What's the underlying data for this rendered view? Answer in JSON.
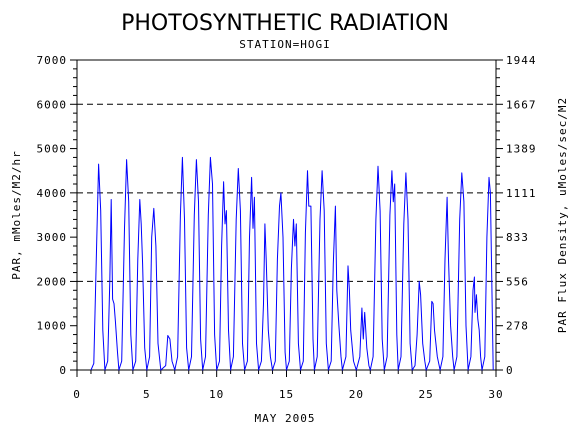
{
  "chart_data": {
    "type": "line",
    "title": "PHOTOSYNTHETIC RADIATION",
    "subtitle": "STATION=HOGI",
    "xlabel": "MAY 2005",
    "ylabel": "PAR, mMoles/M2/hr",
    "ylabel_right": "PAR Flux Density, uMoles/sec/M2",
    "xlim": [
      0,
      30
    ],
    "ylim": [
      0,
      7000
    ],
    "x_ticks": [
      "0",
      "5",
      "10",
      "15",
      "20",
      "25",
      "30"
    ],
    "y_ticks": [
      "0",
      "1000",
      "2000",
      "3000",
      "4000",
      "5000",
      "6000",
      "7000"
    ],
    "y2_ticks": [
      "0",
      "278",
      "556",
      "833",
      "1111",
      "1389",
      "1667",
      "1944"
    ],
    "reference_lines": [
      2000,
      4000,
      6000
    ],
    "line_color": "#0000ff",
    "series": [
      {
        "values": [
          [
            1.0,
            0
          ],
          [
            1.2,
            150
          ],
          [
            1.4,
            2800
          ],
          [
            1.55,
            4650
          ],
          [
            1.7,
            3600
          ],
          [
            1.85,
            900
          ],
          [
            2.0,
            0
          ],
          [
            2.2,
            200
          ],
          [
            2.35,
            2000
          ],
          [
            2.45,
            3850
          ],
          [
            2.55,
            1600
          ],
          [
            2.65,
            1500
          ],
          [
            2.75,
            1100
          ],
          [
            2.9,
            400
          ],
          [
            3.0,
            0
          ],
          [
            3.2,
            200
          ],
          [
            3.4,
            3200
          ],
          [
            3.55,
            4750
          ],
          [
            3.7,
            3800
          ],
          [
            3.85,
            800
          ],
          [
            4.0,
            0
          ],
          [
            4.2,
            200
          ],
          [
            4.35,
            2500
          ],
          [
            4.5,
            3850
          ],
          [
            4.6,
            3300
          ],
          [
            4.7,
            2400
          ],
          [
            4.85,
            500
          ],
          [
            5.0,
            0
          ],
          [
            5.2,
            300
          ],
          [
            5.35,
            3000
          ],
          [
            5.5,
            3650
          ],
          [
            5.65,
            2800
          ],
          [
            5.8,
            600
          ],
          [
            6.0,
            0
          ],
          [
            6.35,
            100
          ],
          [
            6.5,
            780
          ],
          [
            6.65,
            700
          ],
          [
            6.8,
            200
          ],
          [
            7.0,
            0
          ],
          [
            7.2,
            300
          ],
          [
            7.4,
            3500
          ],
          [
            7.55,
            4800
          ],
          [
            7.7,
            3400
          ],
          [
            7.85,
            500
          ],
          [
            8.0,
            0
          ],
          [
            8.2,
            300
          ],
          [
            8.4,
            3500
          ],
          [
            8.55,
            4750
          ],
          [
            8.7,
            3800
          ],
          [
            8.85,
            700
          ],
          [
            9.0,
            0
          ],
          [
            9.2,
            300
          ],
          [
            9.4,
            3500
          ],
          [
            9.55,
            4800
          ],
          [
            9.7,
            4200
          ],
          [
            9.85,
            800
          ],
          [
            10.0,
            0
          ],
          [
            10.2,
            200
          ],
          [
            10.35,
            2800
          ],
          [
            10.5,
            4250
          ],
          [
            10.6,
            3300
          ],
          [
            10.7,
            3600
          ],
          [
            10.85,
            900
          ],
          [
            11.0,
            0
          ],
          [
            11.2,
            300
          ],
          [
            11.4,
            3400
          ],
          [
            11.55,
            4550
          ],
          [
            11.7,
            3600
          ],
          [
            11.85,
            600
          ],
          [
            12.0,
            0
          ],
          [
            12.2,
            200
          ],
          [
            12.35,
            3000
          ],
          [
            12.5,
            4350
          ],
          [
            12.6,
            3200
          ],
          [
            12.7,
            3900
          ],
          [
            12.85,
            600
          ],
          [
            13.0,
            0
          ],
          [
            13.2,
            200
          ],
          [
            13.35,
            1500
          ],
          [
            13.45,
            3300
          ],
          [
            13.55,
            2500
          ],
          [
            13.7,
            900
          ],
          [
            13.85,
            300
          ],
          [
            14.0,
            0
          ],
          [
            14.2,
            200
          ],
          [
            14.35,
            2500
          ],
          [
            14.5,
            3700
          ],
          [
            14.6,
            4000
          ],
          [
            14.75,
            3000
          ],
          [
            14.9,
            400
          ],
          [
            15.0,
            0
          ],
          [
            15.2,
            200
          ],
          [
            15.35,
            2300
          ],
          [
            15.5,
            3400
          ],
          [
            15.6,
            2800
          ],
          [
            15.7,
            3300
          ],
          [
            15.85,
            600
          ],
          [
            16.0,
            0
          ],
          [
            16.2,
            200
          ],
          [
            16.35,
            3100
          ],
          [
            16.5,
            4500
          ],
          [
            16.6,
            3700
          ],
          [
            16.75,
            3700
          ],
          [
            16.9,
            700
          ],
          [
            17.0,
            0
          ],
          [
            17.2,
            300
          ],
          [
            17.4,
            3400
          ],
          [
            17.55,
            4500
          ],
          [
            17.7,
            3600
          ],
          [
            17.85,
            600
          ],
          [
            18.0,
            0
          ],
          [
            18.2,
            200
          ],
          [
            18.35,
            2400
          ],
          [
            18.5,
            3700
          ],
          [
            18.6,
            1800
          ],
          [
            18.75,
            1000
          ],
          [
            18.9,
            300
          ],
          [
            19.0,
            0
          ],
          [
            19.25,
            300
          ],
          [
            19.4,
            2350
          ],
          [
            19.5,
            1800
          ],
          [
            19.6,
            900
          ],
          [
            19.8,
            200
          ],
          [
            20.0,
            0
          ],
          [
            20.25,
            300
          ],
          [
            20.4,
            1400
          ],
          [
            20.5,
            700
          ],
          [
            20.6,
            1300
          ],
          [
            20.75,
            500
          ],
          [
            20.9,
            100
          ],
          [
            21.0,
            0
          ],
          [
            21.2,
            300
          ],
          [
            21.4,
            3400
          ],
          [
            21.55,
            4600
          ],
          [
            21.7,
            3600
          ],
          [
            21.85,
            700
          ],
          [
            22.0,
            0
          ],
          [
            22.2,
            300
          ],
          [
            22.4,
            3500
          ],
          [
            22.55,
            4500
          ],
          [
            22.65,
            3800
          ],
          [
            22.75,
            4200
          ],
          [
            22.9,
            800
          ],
          [
            23.0,
            0
          ],
          [
            23.2,
            300
          ],
          [
            23.4,
            3300
          ],
          [
            23.55,
            4450
          ],
          [
            23.7,
            3400
          ],
          [
            23.85,
            600
          ],
          [
            24.0,
            0
          ],
          [
            24.2,
            100
          ],
          [
            24.35,
            800
          ],
          [
            24.5,
            2000
          ],
          [
            24.6,
            1700
          ],
          [
            24.75,
            600
          ],
          [
            24.9,
            200
          ],
          [
            25.0,
            0
          ],
          [
            25.25,
            200
          ],
          [
            25.4,
            1550
          ],
          [
            25.5,
            1500
          ],
          [
            25.6,
            900
          ],
          [
            25.8,
            300
          ],
          [
            26.0,
            0
          ],
          [
            26.2,
            300
          ],
          [
            26.35,
            2500
          ],
          [
            26.5,
            3900
          ],
          [
            26.6,
            2500
          ],
          [
            26.75,
            1000
          ],
          [
            26.9,
            300
          ],
          [
            27.0,
            0
          ],
          [
            27.2,
            300
          ],
          [
            27.4,
            3400
          ],
          [
            27.55,
            4450
          ],
          [
            27.7,
            3800
          ],
          [
            27.85,
            1000
          ],
          [
            28.0,
            0
          ],
          [
            28.2,
            300
          ],
          [
            28.35,
            1800
          ],
          [
            28.45,
            2100
          ],
          [
            28.5,
            1300
          ],
          [
            28.6,
            1700
          ],
          [
            28.7,
            1150
          ],
          [
            28.8,
            900
          ],
          [
            28.9,
            300
          ],
          [
            29.0,
            0
          ],
          [
            29.2,
            300
          ],
          [
            29.35,
            3000
          ],
          [
            29.5,
            4350
          ],
          [
            29.6,
            4000
          ],
          [
            29.7,
            2000
          ],
          [
            29.8,
            0
          ]
        ]
      }
    ]
  }
}
